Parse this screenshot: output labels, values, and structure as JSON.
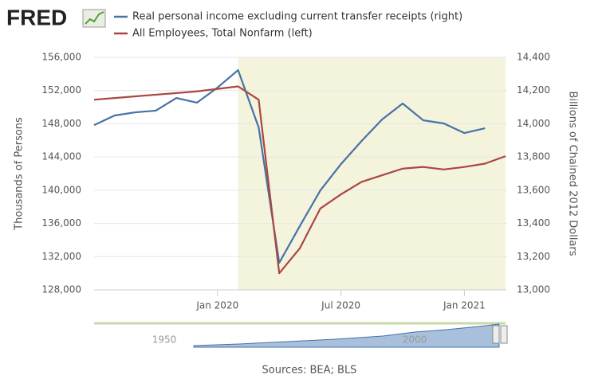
{
  "logo": "FRED",
  "chart_data": {
    "type": "line",
    "x": [
      "2019-07",
      "2019-08",
      "2019-09",
      "2019-10",
      "2019-11",
      "2019-12",
      "2020-01",
      "2020-02",
      "2020-03",
      "2020-04",
      "2020-05",
      "2020-06",
      "2020-07",
      "2020-08",
      "2020-09",
      "2020-10",
      "2020-11",
      "2020-12",
      "2021-01",
      "2021-02",
      "2021-03"
    ],
    "xlim": [
      "2019-07",
      "2021-03"
    ],
    "xticks": [
      {
        "value": "2020-01",
        "label": "Jan 2020"
      },
      {
        "value": "2020-07",
        "label": "Jul 2020"
      },
      {
        "value": "2021-01",
        "label": "Jan 2021"
      }
    ],
    "ylabel": "Thousands of Persons",
    "y2label": "Billions of Chained 2012 Dollars",
    "ylim": [
      128000,
      156000
    ],
    "yticks": [
      {
        "value": 128000,
        "label": "128,000"
      },
      {
        "value": 132000,
        "label": "132,000"
      },
      {
        "value": 136000,
        "label": "136,000"
      },
      {
        "value": 140000,
        "label": "140,000"
      },
      {
        "value": 144000,
        "label": "144,000"
      },
      {
        "value": 148000,
        "label": "148,000"
      },
      {
        "value": 152000,
        "label": "152,000"
      },
      {
        "value": 156000,
        "label": "156,000"
      }
    ],
    "y2lim": [
      13000,
      14400
    ],
    "y2ticks": [
      {
        "value": 13000,
        "label": "13,000"
      },
      {
        "value": 13200,
        "label": "13,200"
      },
      {
        "value": 13400,
        "label": "13,400"
      },
      {
        "value": 13600,
        "label": "13,600"
      },
      {
        "value": 13800,
        "label": "13,800"
      },
      {
        "value": 14000,
        "label": "14,000"
      },
      {
        "value": 14200,
        "label": "14,200"
      },
      {
        "value": 14400,
        "label": "14,400"
      }
    ],
    "grid": true,
    "recession": [
      "2020-02",
      "2021-03"
    ],
    "recession_color": "#f4f3dc",
    "series": [
      {
        "name": "Real personal income excluding current transfer receipts (right)",
        "color": "#4572a7",
        "axis": "y2",
        "values": [
          13992,
          14050,
          14069,
          14079,
          14155,
          14127,
          14218,
          14323,
          13978,
          13163,
          13384,
          13599,
          13757,
          13896,
          14026,
          14122,
          14021,
          14002,
          13944,
          13973,
          null
        ]
      },
      {
        "name": "All Employees, Total Nonfarm (left)",
        "color": "#aa4643",
        "axis": "y",
        "values": [
          150900,
          151100,
          151300,
          151500,
          151700,
          151900,
          152200,
          152500,
          150900,
          130000,
          133000,
          137800,
          139500,
          141000,
          141800,
          142600,
          142800,
          142500,
          142800,
          143200,
          144100
        ]
      }
    ],
    "navigator_labels": [
      "1950",
      "2000"
    ],
    "source": "Sources: BEA; BLS"
  }
}
